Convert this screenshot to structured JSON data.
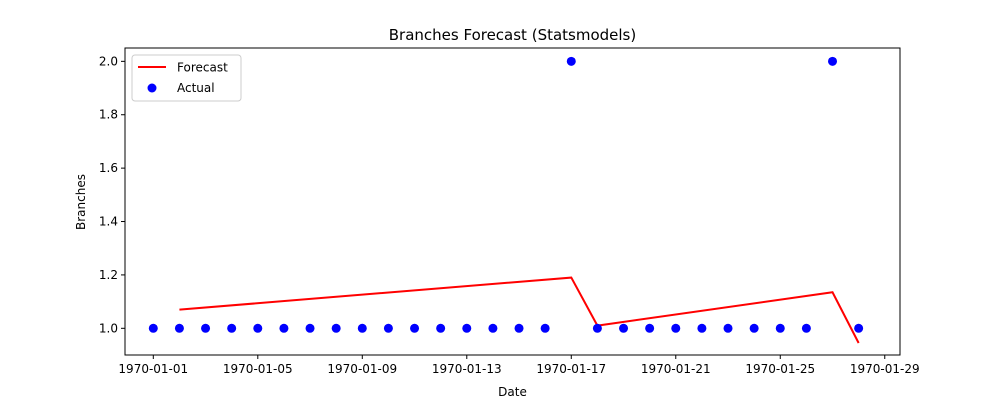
{
  "chart_data": {
    "type": "line",
    "title": "Branches Forecast (Statsmodels)",
    "xlabel": "Date",
    "ylabel": "Branches",
    "x_axis": "date",
    "xlim": [
      "1969-12-30T22:00:00",
      "1970-01-29T14:00:00"
    ],
    "ylim": [
      0.9,
      2.05
    ],
    "xticks": [
      "1970-01-01",
      "1970-01-05",
      "1970-01-09",
      "1970-01-13",
      "1970-01-17",
      "1970-01-21",
      "1970-01-25",
      "1970-01-29"
    ],
    "yticks": [
      "1.0",
      "1.2",
      "1.4",
      "1.6",
      "1.8",
      "2.0"
    ],
    "legend_position": "top-left",
    "grid": false,
    "series": [
      {
        "name": "Forecast",
        "kind": "line",
        "color": "#ff0000",
        "points": [
          {
            "x": "1970-01-02",
            "y": 1.07
          },
          {
            "x": "1970-01-17",
            "y": 1.19
          },
          {
            "x": "1970-01-18",
            "y": 1.01
          },
          {
            "x": "1970-01-27",
            "y": 1.135
          },
          {
            "x": "1970-01-28",
            "y": 0.945
          }
        ]
      },
      {
        "name": "Actual",
        "kind": "scatter",
        "color": "#0000ff",
        "points": [
          {
            "x": "1970-01-01",
            "y": 1
          },
          {
            "x": "1970-01-02",
            "y": 1
          },
          {
            "x": "1970-01-03",
            "y": 1
          },
          {
            "x": "1970-01-04",
            "y": 1
          },
          {
            "x": "1970-01-05",
            "y": 1
          },
          {
            "x": "1970-01-06",
            "y": 1
          },
          {
            "x": "1970-01-07",
            "y": 1
          },
          {
            "x": "1970-01-08",
            "y": 1
          },
          {
            "x": "1970-01-09",
            "y": 1
          },
          {
            "x": "1970-01-10",
            "y": 1
          },
          {
            "x": "1970-01-11",
            "y": 1
          },
          {
            "x": "1970-01-12",
            "y": 1
          },
          {
            "x": "1970-01-13",
            "y": 1
          },
          {
            "x": "1970-01-14",
            "y": 1
          },
          {
            "x": "1970-01-15",
            "y": 1
          },
          {
            "x": "1970-01-16",
            "y": 1
          },
          {
            "x": "1970-01-17",
            "y": 2
          },
          {
            "x": "1970-01-18",
            "y": 1
          },
          {
            "x": "1970-01-19",
            "y": 1
          },
          {
            "x": "1970-01-20",
            "y": 1
          },
          {
            "x": "1970-01-21",
            "y": 1
          },
          {
            "x": "1970-01-22",
            "y": 1
          },
          {
            "x": "1970-01-23",
            "y": 1
          },
          {
            "x": "1970-01-24",
            "y": 1
          },
          {
            "x": "1970-01-25",
            "y": 1
          },
          {
            "x": "1970-01-26",
            "y": 1
          },
          {
            "x": "1970-01-27",
            "y": 2
          },
          {
            "x": "1970-01-28",
            "y": 1
          }
        ]
      }
    ]
  }
}
